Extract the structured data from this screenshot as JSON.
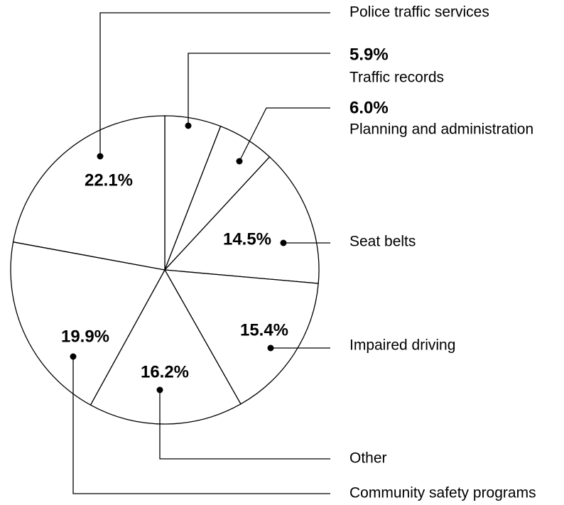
{
  "chart_data": {
    "type": "pie",
    "categories": [
      "Traffic records",
      "Planning and administration",
      "Seat belts",
      "Impaired driving",
      "Other",
      "Community safety programs",
      "Police traffic services"
    ],
    "values": [
      5.9,
      6.0,
      14.5,
      15.4,
      16.2,
      19.9,
      22.1
    ],
    "value_labels": [
      "5.9%",
      "6.0%",
      "14.5%",
      "15.4%",
      "16.2%",
      "19.9%",
      "22.1%"
    ],
    "color": "#ffffff"
  }
}
